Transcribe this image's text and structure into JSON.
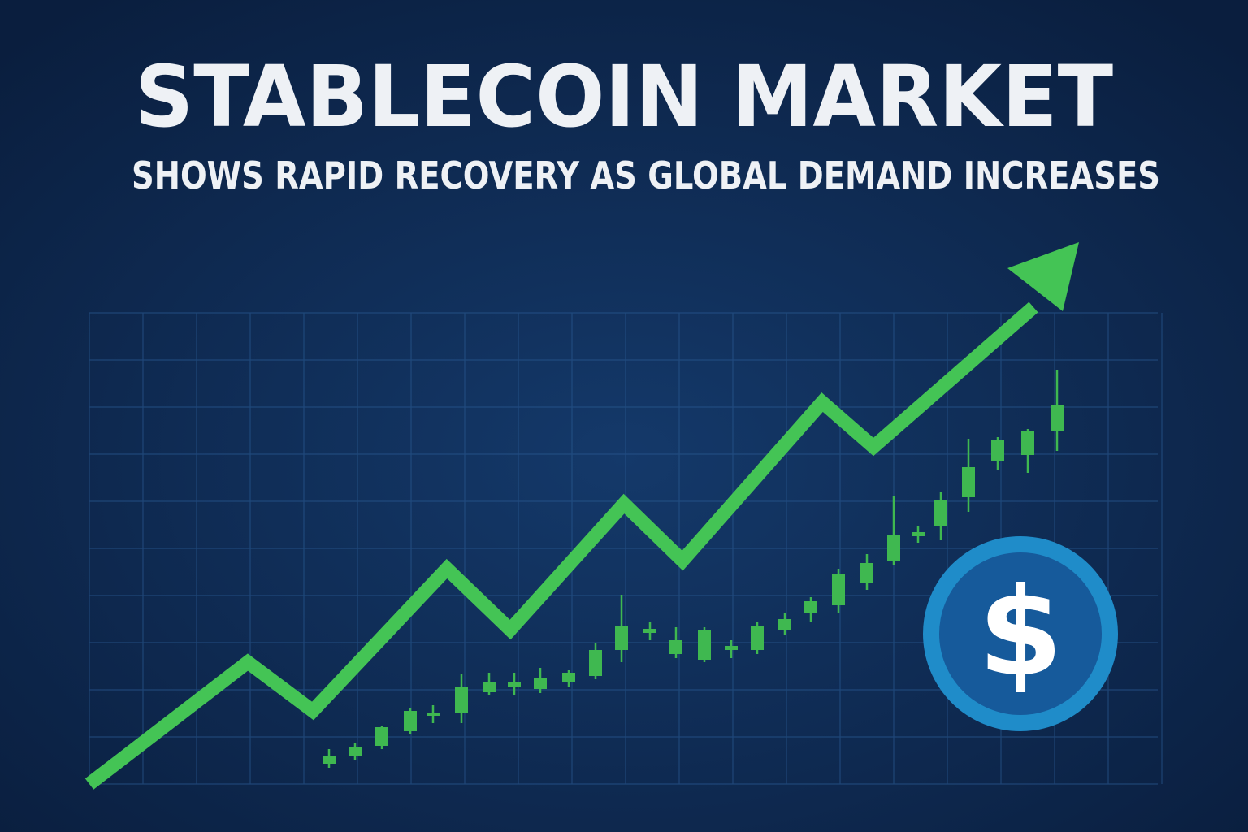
{
  "header": {
    "title": "STABLECOIN MARKET",
    "subtitle": "SHOWS RAPID RECOVERY AS GLOBAL DEMAND INCREASES"
  },
  "coin": {
    "symbol": "$"
  }
}
